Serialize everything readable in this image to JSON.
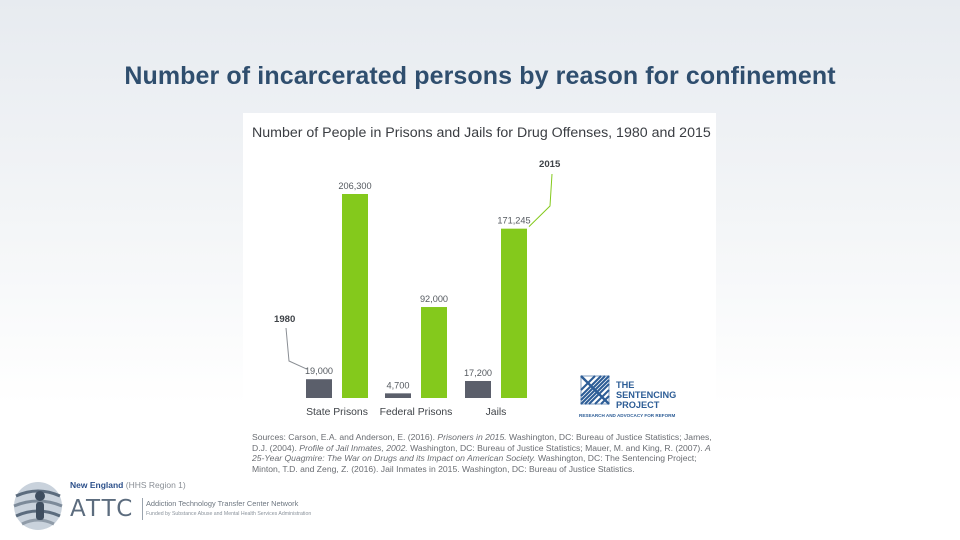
{
  "slide": {
    "title": "Number of incarcerated persons by reason for confinement"
  },
  "chart_data": {
    "type": "bar",
    "title": "Number of People in Prisons and Jails for Drug Offenses, 1980 and 2015",
    "categories": [
      "State Prisons",
      "Federal Prisons",
      "Jails"
    ],
    "series": [
      {
        "name": "1980",
        "values": [
          19000,
          4700,
          17200
        ],
        "labels": [
          "19,000",
          "4,700",
          "17,200"
        ],
        "color": "#5b5f6b"
      },
      {
        "name": "2015",
        "values": [
          206300,
          92000,
          171245
        ],
        "labels": [
          "206,300",
          "92,000",
          "171,245"
        ],
        "color": "#84c91c"
      }
    ],
    "ylim": [
      0,
      206300
    ],
    "grid": false,
    "legend": "annotation callouts"
  },
  "sources": {
    "prefix": "Sources: Carson, E.A. and Anderson, E. (2016). ",
    "t1": "Prisoners in 2015.",
    "p2": " Washington, DC: Bureau of Justice Statistics; James, D.J. (2004). ",
    "t2": "Profile of Jail Inmates, 2002.",
    "p3": " Washington, DC: Bureau of Justice Statistics; Mauer, M. and King, R. (2007). ",
    "t3": "A 25-Year Quagmire: The War on Drugs and its Impact on American Society.",
    "p4": " Washington, DC: The Sentencing Project; Minton, T.D. and Zeng, Z. (2016). Jail Inmates in 2015. Washington, DC: Bureau of Justice Statistics."
  },
  "sentencing_logo": {
    "line1": "THE",
    "line2": "SENTENCING",
    "line3": "PROJECT",
    "tagline": "RESEARCH AND ADVOCACY FOR REFORM"
  },
  "footer": {
    "region": "New England",
    "region_sub": "(HHS Region 1)",
    "org_short": "ATTC",
    "org_full": "Addiction Technology Transfer Center Network",
    "funded_by": "Funded by Substance Abuse and Mental Health Services Administration"
  },
  "colors": {
    "title": "#2f4e6e",
    "bar_1980": "#5b5f6b",
    "bar_2015": "#84c91c",
    "logo_blue": "#2d5d96"
  }
}
